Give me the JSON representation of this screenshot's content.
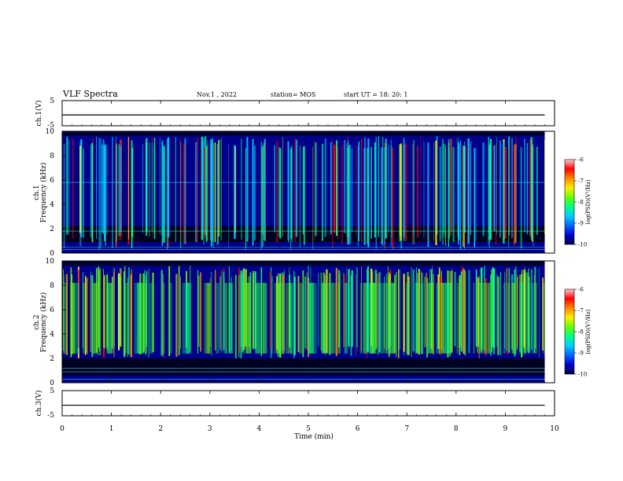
{
  "header": {
    "title": "VLF Spectra",
    "date": "Nov.1  , 2022",
    "station": "station= MOS",
    "start_ut": "start  UT =   18: 20: 1"
  },
  "colors": {
    "spectrogram_scale": [
      "#000044",
      "#0000cc",
      "#0066ff",
      "#00ccff",
      "#00ff88",
      "#66ff00",
      "#ffee00",
      "#ff8800",
      "#ff0000",
      "#ffcccc"
    ],
    "grid_line_cyan": "#33ffff"
  },
  "chart_data": [
    {
      "type": "line",
      "ylabel": "ch.1(V)",
      "xlim": [
        0,
        10
      ],
      "ylim": [
        -5,
        5
      ],
      "yticks": [
        "5",
        "-5"
      ],
      "series": [
        {
          "x": [
            0,
            9.8
          ],
          "values": [
            -0.7,
            -0.7
          ]
        }
      ]
    },
    {
      "type": "heatmap",
      "ylabel_top": "ch.1",
      "ylabel": "Frequency (kHz)",
      "xlim": [
        0,
        10
      ],
      "ylim": [
        0,
        10
      ],
      "yticks": [
        "0",
        "2",
        "4",
        "6",
        "8",
        "10"
      ],
      "data_extent_x": [
        0,
        9.8
      ],
      "colorbar": {
        "label": "log(PSD)(V²/Hz)",
        "range": [
          -10,
          -6
        ],
        "ticks": [
          "-6",
          "-7",
          "-8",
          "-9",
          "-10"
        ]
      },
      "notes": "Broadband impulsive vertical streaks (sferics) spanning ~0.3–9.5 kHz; dark band near 1–2 kHz; horizontal narrowband lines near 0.3, 0.5, 1.8, 5.8 kHz"
    },
    {
      "type": "heatmap",
      "ylabel_top": "ch.2",
      "ylabel": "Frequency (kHz)",
      "xlim": [
        0,
        10
      ],
      "ylim": [
        0,
        10
      ],
      "yticks": [
        "0",
        "2",
        "4",
        "6",
        "8",
        "10"
      ],
      "data_extent_x": [
        0,
        9.8
      ],
      "colorbar": {
        "label": "log(PSD)(V²/Hz)",
        "range": [
          -10,
          -6
        ],
        "ticks": [
          "-6",
          "-7",
          "-8",
          "-9",
          "-10"
        ]
      },
      "notes": "Dense broadband emission from ~2 to ~9.5 kHz with many vertical streaks; weaker below 2 kHz; horizontal lines near 0.3, 0.9, 1.2 kHz"
    },
    {
      "type": "line",
      "ylabel": "ch.3(V)",
      "xlim": [
        0,
        10
      ],
      "ylim": [
        -5,
        5
      ],
      "yticks": [
        "5",
        "-5"
      ],
      "series": [
        {
          "x": [
            0,
            9.8
          ],
          "values": [
            -0.8,
            -0.8
          ]
        }
      ]
    }
  ],
  "xaxis": {
    "label": "Time  (min)",
    "ticks": [
      "0",
      "1",
      "2",
      "3",
      "4",
      "5",
      "6",
      "7",
      "8",
      "9",
      "10"
    ]
  }
}
